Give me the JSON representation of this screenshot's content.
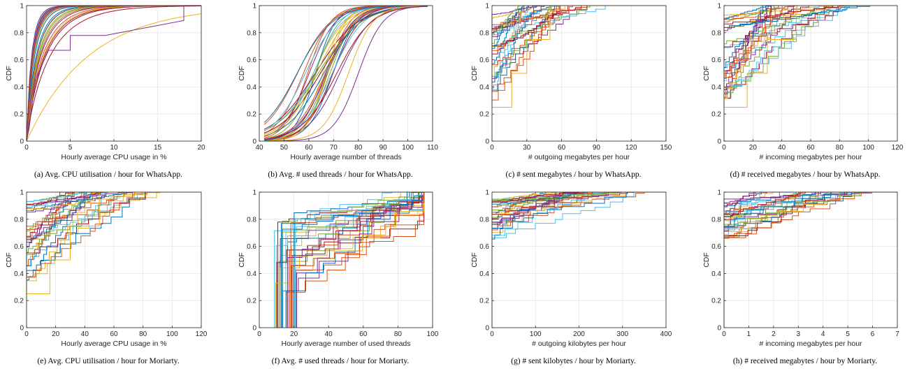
{
  "colors": {
    "series": [
      "#0072BD",
      "#D95319",
      "#EDB120",
      "#7E2F8E",
      "#77AC30",
      "#4DBEEE",
      "#A2142F"
    ],
    "grid": "#e6e6e6",
    "axis": "#262626"
  },
  "chart_data": [
    {
      "type": "line",
      "panel": "a",
      "xlabel": "Hourly average CPU usage in %",
      "ylabel": "CDF",
      "xlim": [
        0,
        20
      ],
      "ylim": [
        0,
        1
      ],
      "xticks": [
        "0",
        "5",
        "10",
        "15",
        "20"
      ],
      "yticks": [
        "0",
        "0.2",
        "0.4",
        "0.6",
        "0.8",
        "1"
      ],
      "caption": "(a) Avg. CPU utilisation / hour for WhatsApp.",
      "grid": true
    },
    {
      "type": "line",
      "panel": "b",
      "xlabel": "Hourly average number of threads",
      "ylabel": "CDF",
      "xlim": [
        40,
        110
      ],
      "ylim": [
        0,
        1
      ],
      "xticks": [
        "40",
        "50",
        "60",
        "70",
        "80",
        "90",
        "100",
        "110"
      ],
      "yticks": [
        "0",
        "0.2",
        "0.4",
        "0.6",
        "0.8",
        "1"
      ],
      "caption": "(b) Avg. # used threads / hour for WhatsApp.",
      "grid": true
    },
    {
      "type": "line",
      "panel": "c",
      "xlabel": "# outgoing megabytes per hour",
      "ylabel": "CDF",
      "xlim": [
        0,
        150
      ],
      "ylim": [
        0,
        1
      ],
      "xticks": [
        "0",
        "30",
        "60",
        "90",
        "120",
        "150"
      ],
      "yticks": [
        "0",
        "0.2",
        "0.4",
        "0.6",
        "0.8",
        "1"
      ],
      "caption": "(c) # sent megabytes / hour by WhatsApp.",
      "grid": true
    },
    {
      "type": "line",
      "panel": "d",
      "xlabel": "# incoming megabytes per hour",
      "ylabel": "CDF",
      "xlim": [
        0,
        120
      ],
      "ylim": [
        0,
        1
      ],
      "xticks": [
        "0",
        "20",
        "40",
        "60",
        "80",
        "100",
        "120"
      ],
      "yticks": [
        "0",
        "0.2",
        "0.4",
        "0.6",
        "0.8",
        "1"
      ],
      "caption": "(d) # received megabytes / hour by WhatsApp.",
      "grid": true
    },
    {
      "type": "line",
      "panel": "e",
      "xlabel": "Hourly average CPU usage in %",
      "ylabel": "CDF",
      "xlim": [
        0,
        120
      ],
      "ylim": [
        0,
        1
      ],
      "xticks": [
        "0",
        "20",
        "40",
        "60",
        "80",
        "100",
        "120"
      ],
      "yticks": [
        "0",
        "0.2",
        "0.4",
        "0.6",
        "0.8",
        "1"
      ],
      "caption": "(e) Avg. CPU utilisation / hour for Moriarty.",
      "grid": true
    },
    {
      "type": "line",
      "panel": "f",
      "xlabel": "Hourly average number of used threads",
      "ylabel": "CDF",
      "xlim": [
        0,
        100
      ],
      "ylim": [
        0,
        1
      ],
      "xticks": [
        "0",
        "20",
        "40",
        "60",
        "80",
        "100"
      ],
      "yticks": [
        "0",
        "0.2",
        "0.4",
        "0.6",
        "0.8",
        "1"
      ],
      "caption": "(f) Avg. # used threads / hour for Moriarty.",
      "grid": true
    },
    {
      "type": "line",
      "panel": "g",
      "xlabel": "# outgoing kilobytes per hour",
      "ylabel": "CDF",
      "xlim": [
        0,
        400
      ],
      "ylim": [
        0,
        1
      ],
      "xticks": [
        "0",
        "100",
        "200",
        "300",
        "400"
      ],
      "yticks": [
        "0",
        "0.2",
        "0.4",
        "0.6",
        "0.8",
        "1"
      ],
      "caption": "(g) # sent kilobytes / hour by Moriarty.",
      "grid": true
    },
    {
      "type": "line",
      "panel": "h",
      "xlabel": "# incoming megabytes per hour",
      "ylabel": "CDF",
      "xlim": [
        0,
        7
      ],
      "ylim": [
        0,
        1
      ],
      "xticks": [
        "0",
        "1",
        "2",
        "3",
        "4",
        "5",
        "6",
        "7"
      ],
      "yticks": [
        "0",
        "0.2",
        "0.4",
        "0.6",
        "0.8",
        "1"
      ],
      "caption": "(h) # received megabytes / hour by Moriarty.",
      "grid": true
    }
  ]
}
